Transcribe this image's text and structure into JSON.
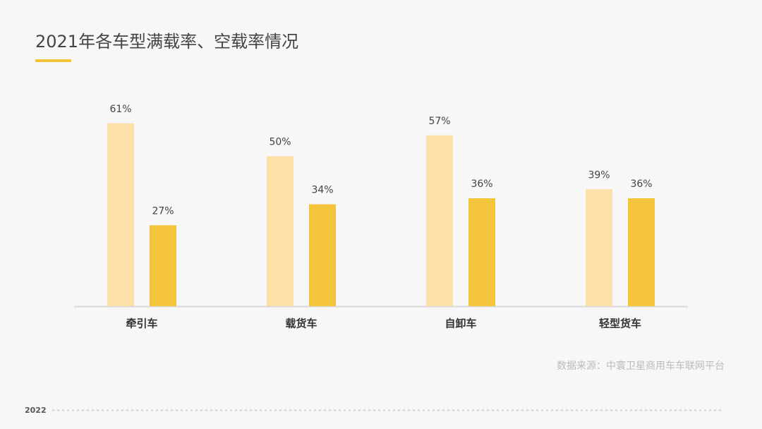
{
  "chart_data": {
    "type": "bar",
    "title": "2021年各车型满载率、空载率情况",
    "categories": [
      "牵引车",
      "载货车",
      "自卸车",
      "轻型货车"
    ],
    "series": [
      {
        "color": "#fddfa8",
        "values": [
          61,
          50,
          57,
          39
        ],
        "value_labels": [
          "61%",
          "50%",
          "57%",
          "39%"
        ]
      },
      {
        "color": "#f4c43a",
        "values": [
          27,
          34,
          36,
          36
        ],
        "value_labels": [
          "27%",
          "34%",
          "36%",
          "36%"
        ]
      }
    ],
    "source": "数据来源：中寰卫星商用车车联网平台",
    "footer": "2022"
  }
}
